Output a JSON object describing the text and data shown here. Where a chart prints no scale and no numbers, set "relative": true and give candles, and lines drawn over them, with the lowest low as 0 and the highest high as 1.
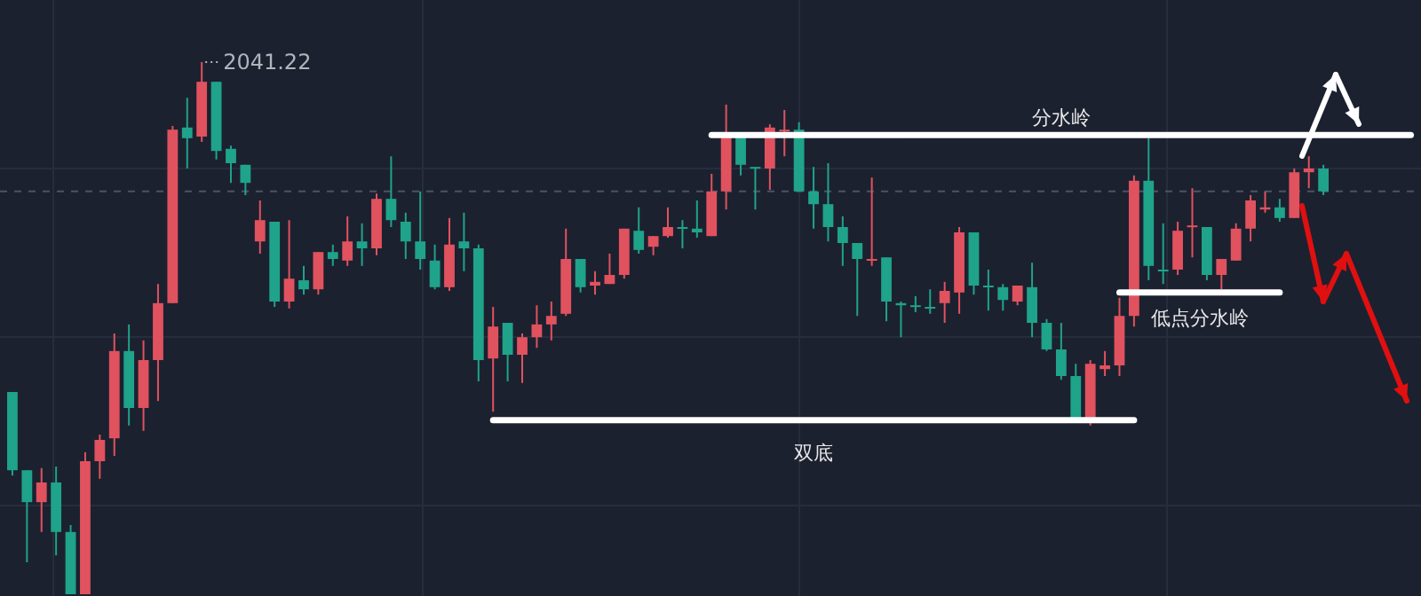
{
  "chart_data": {
    "type": "candlestick",
    "relative": true,
    "grid": true,
    "legend": false,
    "categories": [
      null,
      null,
      null,
      null,
      null,
      null,
      null,
      null,
      null,
      null,
      null,
      null,
      null,
      null,
      null,
      null,
      null,
      null,
      null,
      null,
      null,
      null,
      null,
      null,
      null,
      null,
      null,
      null,
      null,
      null,
      null,
      null,
      null,
      null,
      null,
      null,
      null,
      null,
      null,
      null,
      null,
      null,
      null,
      null,
      null,
      null,
      null,
      null,
      null,
      null,
      null,
      null,
      null,
      null,
      null,
      null,
      null,
      null,
      null,
      null,
      null,
      null,
      null,
      null,
      null,
      null,
      null,
      null,
      null,
      null,
      null,
      null,
      null,
      null,
      null,
      null,
      null,
      null,
      null,
      null,
      null,
      null,
      null,
      null,
      null,
      null,
      null,
      null,
      null,
      null,
      null,
      null,
      null,
      null,
      null,
      null,
      null
    ],
    "ohlc": [
      [
        0.38,
        0.38,
        0.223,
        0.233
      ],
      [
        0.233,
        0.233,
        0.06,
        0.173
      ],
      [
        0.173,
        0.237,
        0.117,
        0.21
      ],
      [
        0.21,
        0.24,
        0.073,
        0.117
      ],
      [
        0.117,
        0.13,
        0,
        0
      ],
      [
        0,
        0.267,
        0,
        0.25
      ],
      [
        0.25,
        0.3,
        0.217,
        0.29
      ],
      [
        0.293,
        0.49,
        0.26,
        0.457
      ],
      [
        0.457,
        0.507,
        0.317,
        0.35
      ],
      [
        0.35,
        0.477,
        0.307,
        0.44
      ],
      [
        0.44,
        0.583,
        0.363,
        0.547
      ],
      [
        0.547,
        0.88,
        0.547,
        0.873
      ],
      [
        0.877,
        0.933,
        0.8,
        0.857
      ],
      [
        0.86,
        1,
        0.85,
        0.963
      ],
      [
        0.963,
        0.963,
        0.817,
        0.833
      ],
      [
        0.837,
        0.843,
        0.773,
        0.81
      ],
      [
        0.807,
        0.807,
        0.75,
        0.773
      ],
      [
        0.663,
        0.74,
        0.64,
        0.703
      ],
      [
        0.7,
        0.7,
        0.54,
        0.55
      ],
      [
        0.55,
        0.703,
        0.537,
        0.593
      ],
      [
        0.59,
        0.617,
        0.563,
        0.573
      ],
      [
        0.573,
        0.643,
        0.563,
        0.643
      ],
      [
        0.643,
        0.657,
        0.617,
        0.63
      ],
      [
        0.627,
        0.71,
        0.617,
        0.663
      ],
      [
        0.663,
        0.697,
        0.617,
        0.65
      ],
      [
        0.65,
        0.753,
        0.637,
        0.743
      ],
      [
        0.743,
        0.823,
        0.69,
        0.703
      ],
      [
        0.7,
        0.717,
        0.63,
        0.663
      ],
      [
        0.663,
        0.757,
        0.61,
        0.63
      ],
      [
        0.627,
        0.657,
        0.573,
        0.577
      ],
      [
        0.577,
        0.707,
        0.57,
        0.657
      ],
      [
        0.663,
        0.717,
        0.607,
        0.65
      ],
      [
        0.65,
        0.657,
        0.4,
        0.44
      ],
      [
        0.443,
        0.54,
        0.343,
        0.503
      ],
      [
        0.51,
        0.51,
        0.4,
        0.45
      ],
      [
        0.45,
        0.49,
        0.397,
        0.483
      ],
      [
        0.483,
        0.543,
        0.463,
        0.507
      ],
      [
        0.507,
        0.55,
        0.477,
        0.523
      ],
      [
        0.527,
        0.687,
        0.523,
        0.63
      ],
      [
        0.63,
        0.63,
        0.567,
        0.577
      ],
      [
        0.58,
        0.607,
        0.563,
        0.587
      ],
      [
        0.583,
        0.64,
        0.583,
        0.6
      ],
      [
        0.6,
        0.687,
        0.593,
        0.687
      ],
      [
        0.683,
        0.727,
        0.64,
        0.647
      ],
      [
        0.653,
        0.673,
        0.637,
        0.673
      ],
      [
        0.673,
        0.727,
        0.67,
        0.69
      ],
      [
        0.69,
        0.703,
        0.65,
        0.687
      ],
      [
        0.687,
        0.74,
        0.67,
        0.68
      ],
      [
        0.673,
        0.79,
        0.673,
        0.757
      ],
      [
        0.757,
        0.92,
        0.723,
        0.86
      ],
      [
        0.86,
        0.86,
        0.787,
        0.807
      ],
      [
        0.803,
        0.803,
        0.723,
        0.8
      ],
      [
        0.8,
        0.883,
        0.76,
        0.877
      ],
      [
        0.87,
        0.91,
        0.823,
        0.873
      ],
      [
        0.873,
        0.887,
        0.757,
        0.757
      ],
      [
        0.757,
        0.803,
        0.687,
        0.733
      ],
      [
        0.733,
        0.81,
        0.663,
        0.69
      ],
      [
        0.69,
        0.71,
        0.617,
        0.66
      ],
      [
        0.66,
        0.66,
        0.523,
        0.63
      ],
      [
        0.627,
        0.783,
        0.617,
        0.63
      ],
      [
        0.633,
        0.633,
        0.513,
        0.55
      ],
      [
        0.547,
        0.55,
        0.483,
        0.543
      ],
      [
        0.543,
        0.56,
        0.53,
        0.54
      ],
      [
        0.54,
        0.573,
        0.527,
        0.537
      ],
      [
        0.547,
        0.587,
        0.51,
        0.57
      ],
      [
        0.567,
        0.69,
        0.527,
        0.68
      ],
      [
        0.68,
        0.68,
        0.563,
        0.58
      ],
      [
        0.58,
        0.61,
        0.533,
        0.577
      ],
      [
        0.577,
        0.583,
        0.533,
        0.553
      ],
      [
        0.55,
        0.58,
        0.543,
        0.58
      ],
      [
        0.577,
        0.623,
        0.483,
        0.51
      ],
      [
        0.51,
        0.517,
        0.457,
        0.46
      ],
      [
        0.46,
        0.51,
        0.403,
        0.41
      ],
      [
        0.41,
        0.433,
        0.323,
        0.33
      ],
      [
        0.33,
        0.44,
        0.317,
        0.433
      ],
      [
        0.423,
        0.457,
        0.41,
        0.43
      ],
      [
        0.43,
        0.557,
        0.41,
        0.523
      ],
      [
        0.523,
        0.787,
        0.503,
        0.777
      ],
      [
        0.777,
        0.857,
        0.59,
        0.617
      ],
      [
        0.61,
        0.697,
        0.583,
        0.607
      ],
      [
        0.61,
        0.7,
        0.6,
        0.683
      ],
      [
        0.69,
        0.763,
        0.633,
        0.693
      ],
      [
        0.69,
        0.69,
        0.59,
        0.6
      ],
      [
        0.6,
        0.63,
        0.573,
        0.63
      ],
      [
        0.627,
        0.697,
        0.627,
        0.687
      ],
      [
        0.687,
        0.75,
        0.663,
        0.74
      ],
      [
        0.723,
        0.757,
        0.717,
        0.727
      ],
      [
        0.727,
        0.743,
        0.7,
        0.707
      ],
      [
        0.707,
        0.8,
        0.707,
        0.793
      ],
      [
        0.793,
        0.823,
        0.763,
        0.8
      ],
      [
        0.8,
        0.807,
        0.75,
        0.757
      ],
      null,
      null,
      null,
      null,
      null,
      null
    ],
    "series": [
      {
        "type": "line",
        "name": "分水岭",
        "color": "#ffffff",
        "values": [
          null,
          null,
          null,
          null,
          null,
          null,
          null,
          null,
          null,
          null,
          null,
          null,
          null,
          null,
          null,
          null,
          null,
          null,
          null,
          null,
          null,
          null,
          null,
          null,
          null,
          null,
          null,
          null,
          null,
          null,
          null,
          null,
          null,
          null,
          null,
          null,
          null,
          null,
          null,
          null,
          null,
          null,
          null,
          null,
          null,
          null,
          null,
          null,
          0.863,
          null,
          null,
          null,
          null,
          null,
          null,
          null,
          null,
          null,
          null,
          null,
          null,
          null,
          null,
          null,
          null,
          null,
          null,
          null,
          null,
          null,
          null,
          null,
          null,
          null,
          null,
          null,
          null,
          null,
          null,
          null,
          null,
          null,
          null,
          null,
          null,
          null,
          null,
          null,
          null,
          null,
          null,
          null,
          null,
          null,
          null,
          null,
          0.863
        ]
      },
      {
        "type": "line",
        "name": "低点分水岭",
        "color": "#ffffff",
        "values": [
          null,
          null,
          null,
          null,
          null,
          null,
          null,
          null,
          null,
          null,
          null,
          null,
          null,
          null,
          null,
          null,
          null,
          null,
          null,
          null,
          null,
          null,
          null,
          null,
          null,
          null,
          null,
          null,
          null,
          null,
          null,
          null,
          null,
          null,
          null,
          null,
          null,
          null,
          null,
          null,
          null,
          null,
          null,
          null,
          null,
          null,
          null,
          null,
          null,
          null,
          null,
          null,
          null,
          null,
          null,
          null,
          null,
          null,
          null,
          null,
          null,
          null,
          null,
          null,
          null,
          null,
          null,
          null,
          null,
          null,
          null,
          null,
          null,
          null,
          null,
          null,
          0.567,
          null,
          null,
          null,
          null,
          null,
          null,
          null,
          null,
          null,
          null,
          0.567,
          null,
          null,
          null,
          null,
          null,
          null,
          null,
          null,
          null
        ]
      },
      {
        "type": "line",
        "name": "双底",
        "color": "#ffffff",
        "values": [
          null,
          null,
          null,
          null,
          null,
          null,
          null,
          null,
          null,
          null,
          null,
          null,
          null,
          null,
          null,
          null,
          null,
          null,
          null,
          null,
          null,
          null,
          null,
          null,
          null,
          null,
          null,
          null,
          null,
          null,
          null,
          null,
          null,
          0.327,
          null,
          null,
          null,
          null,
          null,
          null,
          null,
          null,
          null,
          null,
          null,
          null,
          null,
          null,
          null,
          null,
          null,
          null,
          null,
          null,
          null,
          null,
          null,
          null,
          null,
          null,
          null,
          null,
          null,
          null,
          null,
          null,
          null,
          null,
          null,
          null,
          null,
          null,
          null,
          null,
          null,
          null,
          null,
          0.327,
          null,
          null,
          null,
          null,
          null,
          null,
          null,
          null,
          null,
          null,
          null,
          null,
          null,
          null,
          null,
          null,
          null,
          null,
          null
        ]
      }
    ],
    "ref_lines": [
      {
        "axis": "y",
        "value": 0.757,
        "color": "#4a5468",
        "line_style": "dashed"
      }
    ],
    "annotations": [
      "2041.22"
    ]
  }
}
